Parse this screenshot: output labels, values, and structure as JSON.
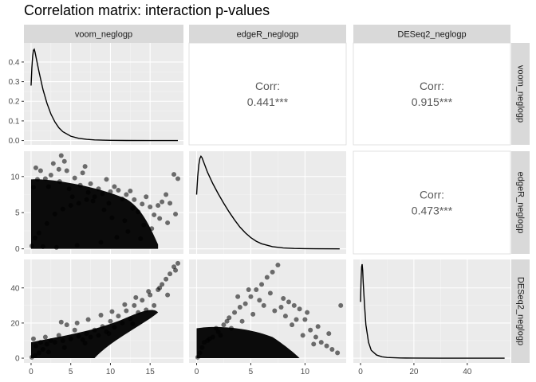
{
  "title": "Correlation matrix: interaction p-values",
  "chart_data": {
    "type": "scatter-matrix",
    "title": "Correlation matrix: interaction p-values",
    "variables": [
      "voom_neglogp",
      "edgeR_neglogp",
      "DESeq2_neglogp"
    ],
    "grid": true,
    "strips": {
      "top": true,
      "right": true
    },
    "axes": {
      "x": [
        {
          "range": [
            -0.9,
            19.2
          ],
          "ticks": [
            0,
            5,
            10,
            15
          ],
          "tick_labels": [
            "0",
            "5",
            "10",
            "15"
          ]
        },
        {
          "range": [
            -0.7,
            13.8
          ],
          "ticks": [
            0,
            5,
            10
          ],
          "tick_labels": [
            "0",
            "5",
            "10"
          ]
        },
        {
          "range": [
            -2.7,
            56.2
          ],
          "ticks": [
            0,
            20,
            40
          ],
          "tick_labels": [
            "0",
            "20",
            "40"
          ]
        }
      ],
      "y": [
        {
          "range": [
            -0.022,
            0.497
          ],
          "ticks": [
            0.0,
            0.1,
            0.2,
            0.3,
            0.4
          ],
          "tick_labels": [
            "0.0",
            "0.1",
            "0.2",
            "0.3",
            "0.4"
          ]
        },
        {
          "range": [
            -0.7,
            13.5
          ],
          "ticks": [
            0,
            5,
            10
          ],
          "tick_labels": [
            "0",
            "5",
            "10"
          ]
        },
        {
          "range": [
            -2.7,
            56.2
          ],
          "ticks": [
            0,
            20,
            40
          ],
          "tick_labels": [
            "0",
            "20",
            "40"
          ]
        }
      ]
    },
    "density": {
      "voom_neglogp": [
        [
          0.0,
          0.28
        ],
        [
          0.1,
          0.37
        ],
        [
          0.2,
          0.43
        ],
        [
          0.3,
          0.46
        ],
        [
          0.4,
          0.465
        ],
        [
          0.5,
          0.45
        ],
        [
          0.7,
          0.41
        ],
        [
          1.0,
          0.35
        ],
        [
          1.5,
          0.26
        ],
        [
          2.0,
          0.19
        ],
        [
          2.5,
          0.135
        ],
        [
          3.0,
          0.095
        ],
        [
          3.5,
          0.065
        ],
        [
          4.0,
          0.045
        ],
        [
          5.0,
          0.022
        ],
        [
          6.0,
          0.011
        ],
        [
          7.0,
          0.006
        ],
        [
          8.0,
          0.003
        ],
        [
          10.0,
          0.001
        ],
        [
          12.0,
          0.0003
        ],
        [
          15.0,
          0.0001
        ],
        [
          18.5,
          0.0
        ]
      ],
      "edgeR_neglogp": [
        [
          0.0,
          7.5
        ],
        [
          0.1,
          10.0
        ],
        [
          0.2,
          11.6
        ],
        [
          0.3,
          12.5
        ],
        [
          0.4,
          12.8
        ],
        [
          0.5,
          12.6
        ],
        [
          0.7,
          11.8
        ],
        [
          1.0,
          10.6
        ],
        [
          1.5,
          9.0
        ],
        [
          2.0,
          7.6
        ],
        [
          2.5,
          6.3
        ],
        [
          3.0,
          5.1
        ],
        [
          3.5,
          4.0
        ],
        [
          4.0,
          3.0
        ],
        [
          4.5,
          2.2
        ],
        [
          5.0,
          1.55
        ],
        [
          5.5,
          1.05
        ],
        [
          6.0,
          0.7
        ],
        [
          7.0,
          0.3
        ],
        [
          8.0,
          0.12
        ],
        [
          9.0,
          0.05
        ],
        [
          10.0,
          0.02
        ],
        [
          11.0,
          0.005
        ],
        [
          13.2,
          0.0
        ]
      ],
      "DESeq2_neglogp": [
        [
          0.0,
          32.0
        ],
        [
          0.2,
          45.0
        ],
        [
          0.4,
          52.0
        ],
        [
          0.6,
          53.5
        ],
        [
          0.8,
          50.0
        ],
        [
          1.0,
          43.0
        ],
        [
          1.5,
          30.0
        ],
        [
          2.0,
          19.0
        ],
        [
          3.0,
          9.0
        ],
        [
          4.0,
          4.5
        ],
        [
          6.0,
          1.8
        ],
        [
          8.0,
          0.8
        ],
        [
          10.0,
          0.4
        ],
        [
          15.0,
          0.1
        ],
        [
          20.0,
          0.04
        ],
        [
          30.0,
          0.01
        ],
        [
          40.0,
          0.0
        ],
        [
          54.0,
          0.0
        ]
      ]
    },
    "correlations": [
      {
        "row": 1,
        "col": 2,
        "label": "Corr:",
        "value": "0.441***"
      },
      {
        "row": 1,
        "col": 3,
        "label": "Corr:",
        "value": "0.915***"
      },
      {
        "row": 2,
        "col": 3,
        "label": "Corr:",
        "value": "0.473***"
      }
    ],
    "scatter": [
      {
        "row": 2,
        "col": 1,
        "x_var": "voom_neglogp",
        "y_var": "edgeR_neglogp",
        "points": [
          [
            0.1,
            0.4
          ],
          [
            0.5,
            1.5
          ],
          [
            1.0,
            2.2
          ],
          [
            2.0,
            3.5
          ],
          [
            3.0,
            4.8
          ],
          [
            4.0,
            5.5
          ],
          [
            5.0,
            6.0
          ],
          [
            6.0,
            6.3
          ],
          [
            7.0,
            6.8
          ],
          [
            8.0,
            7.2
          ],
          [
            9.0,
            7.6
          ],
          [
            10.0,
            7.9
          ],
          [
            11.0,
            8.1
          ],
          [
            12.0,
            7.5
          ],
          [
            13.0,
            6.8
          ],
          [
            14.0,
            6.2
          ],
          [
            15.0,
            5.8
          ],
          [
            16.0,
            6.0
          ],
          [
            17.0,
            7.5
          ],
          [
            18.0,
            10.3
          ],
          [
            18.5,
            9.7
          ],
          [
            16.5,
            6.5
          ],
          [
            14.5,
            7.2
          ],
          [
            12.5,
            8.0
          ],
          [
            10.5,
            8.6
          ],
          [
            9.5,
            9.6
          ],
          [
            8.5,
            8.3
          ],
          [
            7.5,
            9.0
          ],
          [
            6.5,
            10.5
          ],
          [
            5.5,
            9.8
          ],
          [
            4.5,
            10.8
          ],
          [
            3.8,
            12.9
          ],
          [
            3.5,
            11.0
          ],
          [
            2.5,
            10.2
          ],
          [
            1.8,
            9.7
          ],
          [
            1.2,
            10.8
          ],
          [
            0.8,
            9.6
          ],
          [
            0.6,
            11.2
          ],
          [
            0.3,
            8.5
          ],
          [
            2.8,
            11.8
          ],
          [
            4.2,
            12.1
          ],
          [
            6.8,
            11.4
          ],
          [
            7.2,
            7.8
          ],
          [
            9.8,
            6.3
          ],
          [
            11.5,
            6.9
          ],
          [
            13.5,
            5.1
          ],
          [
            15.5,
            4.7
          ],
          [
            17.5,
            6.3
          ],
          [
            16.2,
            4.2
          ],
          [
            12.8,
            5.6
          ],
          [
            1.5,
            0.3
          ],
          [
            3.2,
            0.2
          ],
          [
            5.8,
            0.5
          ],
          [
            8.8,
            0.9
          ],
          [
            10.8,
            1.6
          ],
          [
            12.2,
            2.4
          ],
          [
            13.8,
            1.4
          ],
          [
            15.2,
            2.8
          ],
          [
            17.2,
            3.6
          ],
          [
            18.2,
            4.8
          ],
          [
            5.2,
            7.2
          ],
          [
            4.8,
            8.3
          ],
          [
            3.6,
            9.3
          ],
          [
            2.2,
            8.6
          ],
          [
            6.2,
            8.8
          ],
          [
            7.8,
            6.6
          ],
          [
            9.2,
            5.4
          ],
          [
            10.2,
            4.3
          ],
          [
            11.8,
            3.9
          ],
          [
            14.2,
            3.3
          ]
        ]
      },
      {
        "row": 3,
        "col": 1,
        "x_var": "voom_neglogp",
        "y_var": "DESeq2_neglogp",
        "points": [
          [
            0.1,
            0.5
          ],
          [
            0.5,
            1.5
          ],
          [
            1.0,
            3.0
          ],
          [
            1.5,
            5.0
          ],
          [
            2.0,
            8.0
          ],
          [
            3.0,
            9.0
          ],
          [
            4.0,
            10.0
          ],
          [
            5.0,
            11.0
          ],
          [
            6.0,
            12.5
          ],
          [
            7.0,
            14.0
          ],
          [
            8.0,
            16.0
          ],
          [
            9.0,
            18.0
          ],
          [
            10.0,
            21.0
          ],
          [
            11.0,
            24.0
          ],
          [
            12.0,
            27.0
          ],
          [
            13.0,
            30.0
          ],
          [
            14.0,
            33.0
          ],
          [
            15.0,
            36.0
          ],
          [
            16.0,
            39.0
          ],
          [
            16.5,
            42.0
          ],
          [
            17.0,
            45.0
          ],
          [
            17.5,
            48.0
          ],
          [
            18.0,
            52.0
          ],
          [
            18.5,
            54.0
          ],
          [
            18.2,
            50.0
          ],
          [
            15.5,
            30.0
          ],
          [
            14.5,
            27.5
          ],
          [
            13.5,
            26.0
          ],
          [
            12.5,
            22.5
          ],
          [
            11.5,
            20.0
          ],
          [
            10.5,
            17.5
          ],
          [
            9.5,
            15.0
          ],
          [
            8.5,
            13.0
          ],
          [
            7.5,
            12.0
          ],
          [
            6.5,
            10.5
          ],
          [
            5.5,
            16.0
          ],
          [
            4.5,
            19.0
          ],
          [
            3.5,
            13.0
          ],
          [
            2.5,
            10.0
          ],
          [
            1.8,
            12.0
          ],
          [
            1.2,
            9.0
          ],
          [
            0.6,
            7.0
          ],
          [
            0.3,
            11.0
          ],
          [
            3.8,
            20.5
          ],
          [
            5.8,
            20.0
          ],
          [
            7.2,
            22.0
          ],
          [
            8.8,
            24.5
          ],
          [
            10.2,
            26.5
          ],
          [
            11.8,
            30.5
          ],
          [
            13.2,
            34.5
          ],
          [
            14.8,
            38.0
          ],
          [
            16.2,
            40.0
          ],
          [
            17.2,
            36.0
          ],
          [
            12.8,
            19.5
          ],
          [
            9.8,
            14.0
          ],
          [
            6.8,
            8.5
          ],
          [
            4.2,
            6.0
          ],
          [
            2.2,
            3.5
          ]
        ]
      },
      {
        "row": 3,
        "col": 2,
        "x_var": "edgeR_neglogp",
        "y_var": "DESeq2_neglogp",
        "points": [
          [
            0.1,
            0.5
          ],
          [
            0.5,
            6.0
          ],
          [
            1.0,
            10.0
          ],
          [
            1.5,
            12.0
          ],
          [
            2.0,
            15.0
          ],
          [
            2.5,
            19.0
          ],
          [
            3.0,
            23.0
          ],
          [
            3.5,
            26.0
          ],
          [
            4.0,
            29.0
          ],
          [
            4.5,
            31.0
          ],
          [
            5.0,
            35.0
          ],
          [
            5.5,
            39.0
          ],
          [
            6.0,
            42.0
          ],
          [
            6.5,
            46.0
          ],
          [
            7.0,
            49.0
          ],
          [
            7.5,
            53.0
          ],
          [
            8.0,
            34.0
          ],
          [
            8.5,
            32.0
          ],
          [
            9.0,
            30.0
          ],
          [
            9.5,
            28.0
          ],
          [
            10.0,
            22.0
          ],
          [
            10.5,
            16.0
          ],
          [
            11.0,
            12.0
          ],
          [
            11.5,
            9.0
          ],
          [
            12.0,
            7.0
          ],
          [
            12.5,
            5.0
          ],
          [
            13.0,
            3.0
          ],
          [
            13.3,
            30.0
          ],
          [
            12.2,
            14.0
          ],
          [
            11.2,
            18.0
          ],
          [
            10.2,
            26.0
          ],
          [
            9.2,
            22.0
          ],
          [
            8.2,
            24.0
          ],
          [
            7.2,
            27.0
          ],
          [
            6.2,
            30.0
          ],
          [
            5.2,
            25.0
          ],
          [
            4.2,
            21.0
          ],
          [
            3.2,
            17.0
          ],
          [
            2.2,
            13.0
          ],
          [
            1.2,
            11.0
          ],
          [
            0.7,
            9.0
          ],
          [
            3.8,
            35.0
          ],
          [
            4.8,
            39.0
          ],
          [
            5.8,
            33.0
          ],
          [
            6.8,
            37.0
          ],
          [
            7.8,
            29.0
          ],
          [
            8.8,
            19.0
          ],
          [
            9.8,
            13.0
          ],
          [
            10.8,
            8.0
          ],
          [
            2.8,
            21.0
          ],
          [
            1.8,
            17.0
          ],
          [
            0.3,
            3.0
          ]
        ]
      }
    ]
  }
}
